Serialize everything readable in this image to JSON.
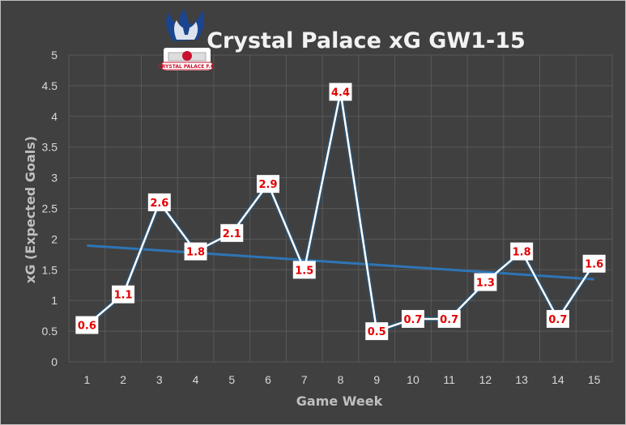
{
  "chart_data": {
    "type": "line",
    "title": "Crystal Palace xG GW1-15",
    "xlabel": "Game Week",
    "ylabel": "xG (Expected Goals)",
    "x": [
      1,
      2,
      3,
      4,
      5,
      6,
      7,
      8,
      9,
      10,
      11,
      12,
      13,
      14,
      15
    ],
    "values": [
      0.6,
      1.1,
      2.6,
      1.8,
      2.1,
      2.9,
      1.5,
      4.4,
      0.5,
      0.7,
      0.7,
      1.3,
      1.8,
      0.7,
      1.6
    ],
    "data_labels": [
      "0.6",
      "1.1",
      "2.6",
      "1.8",
      "2.1",
      "2.9",
      "1.5",
      "4.4",
      "0.5",
      "0.7",
      "0.7",
      "1.3",
      "1.8",
      "0.7",
      "1.6"
    ],
    "y_ticks": [
      "0",
      "0.5",
      "1",
      "1.5",
      "2",
      "2.5",
      "3",
      "3.5",
      "4",
      "4.5",
      "5"
    ],
    "ylim": [
      0,
      5
    ],
    "trendline": {
      "type": "linear",
      "color": "#1f77b4"
    },
    "grid": true,
    "legend": "none",
    "colors": {
      "background": "#404040",
      "line": "#ffffff",
      "trend": "#2e75b6",
      "grid": "#595959",
      "label_text": "#e30000",
      "label_box": "#ffffff"
    }
  },
  "logo": {
    "icon": "eagle-crest",
    "text": "CRYSTAL PALACE F.C."
  }
}
